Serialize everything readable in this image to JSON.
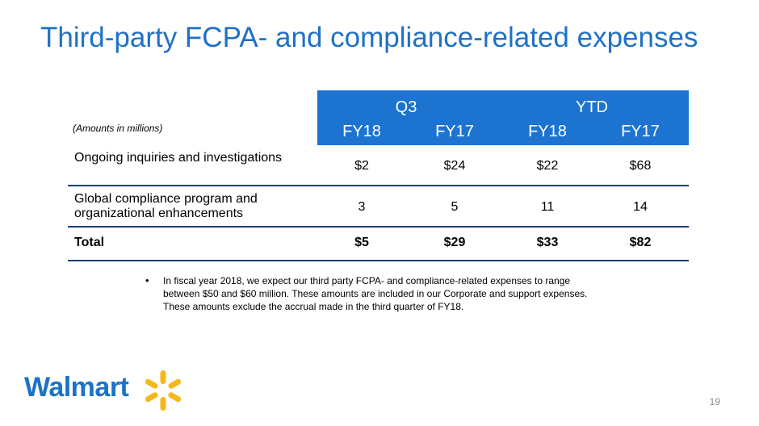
{
  "slide": {
    "title": "Third-party FCPA- and compliance-related expenses",
    "page_number": "19"
  },
  "table": {
    "note": "(Amounts in millions)",
    "groups": [
      "Q3",
      "YTD"
    ],
    "periods": [
      "FY18",
      "FY17",
      "FY18",
      "FY17"
    ],
    "rows": [
      {
        "label": "Ongoing inquiries and investigations",
        "values": [
          "$2",
          "$24",
          "$22",
          "$68"
        ]
      },
      {
        "label": "Global compliance program and organizational enhancements",
        "values": [
          "3",
          "5",
          "11",
          "14"
        ]
      },
      {
        "label": "Total",
        "values": [
          "$5",
          "$29",
          "$33",
          "$82"
        ]
      }
    ]
  },
  "bullets": [
    "In fiscal year 2018, we expect our third party FCPA- and compliance-related expenses to range between $50 and $60 million.  These amounts are included in our Corporate and support expenses.  These amounts exclude the accrual made in the third quarter of FY18."
  ],
  "logo": {
    "text": "Walmart",
    "icon": "spark-icon",
    "text_color": "#1a72c9",
    "spark_color": "#f5b81c"
  },
  "colors": {
    "title": "#1f71c6",
    "header_band": "#1c74d0",
    "rule": "#1a3f7a"
  }
}
